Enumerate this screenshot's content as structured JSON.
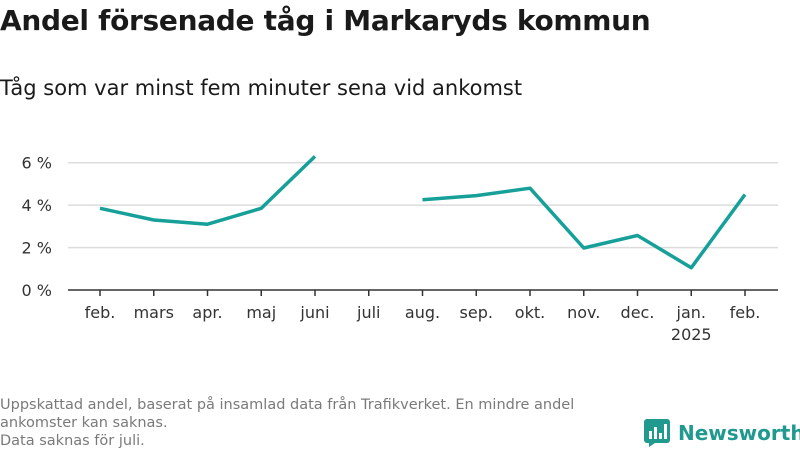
{
  "title": "Andel försenade tåg i Markaryds kommun",
  "subtitle": "Tåg som var minst fem minuter sena vid ankomst",
  "footnote": {
    "line1": "Uppskattad andel, baserat på insamlad data från Trafikverket. En mindre andel ankomster kan saknas.",
    "line2": "Data saknas för juli."
  },
  "brand": {
    "name": "Newsworthy",
    "icon": "newsworthy-logo-icon",
    "color": "#20998f"
  },
  "chart_data": {
    "type": "line",
    "title": "Andel försenade tåg i Markaryds kommun",
    "subtitle": "Tåg som var minst fem minuter sena vid ankomst",
    "categories": [
      "feb.",
      "mars",
      "apr.",
      "maj",
      "juni",
      "juli",
      "aug.",
      "sep.",
      "okt.",
      "nov.",
      "dec.",
      "jan.",
      "feb."
    ],
    "category_sublabels": [
      "",
      "",
      "",
      "",
      "",
      "",
      "",
      "",
      "",
      "",
      "",
      "2025",
      ""
    ],
    "series": [
      {
        "values": [
          3.85,
          3.3,
          3.1,
          3.85,
          6.3,
          null,
          4.25,
          4.45,
          4.8,
          1.98,
          2.57,
          1.05,
          4.5
        ],
        "color": "#16a099"
      }
    ],
    "yticks": [
      0,
      2,
      4,
      6
    ],
    "ytick_labels": [
      "0 %",
      "2 %",
      "4 %",
      "6 %"
    ],
    "ylim": [
      0,
      6.6
    ],
    "xlabel": "",
    "ylabel": "",
    "grid": true,
    "legend": "none"
  }
}
